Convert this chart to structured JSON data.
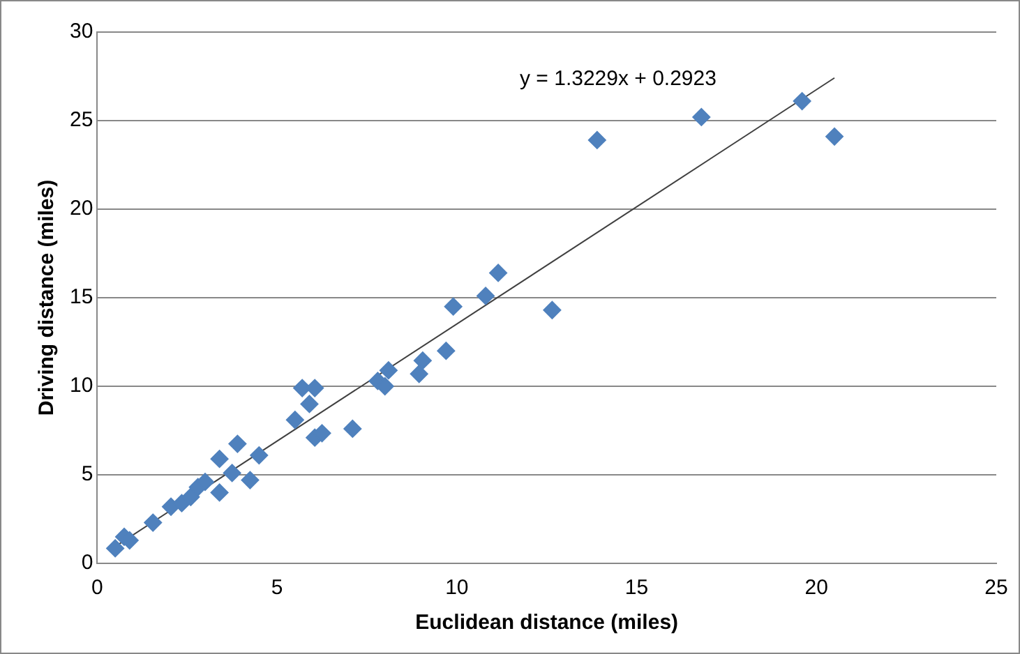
{
  "chart_data": {
    "type": "scatter",
    "xlabel": "Euclidean distance (miles)",
    "ylabel": "Driving distance (miles)",
    "xlim": [
      0,
      25
    ],
    "xticks": [
      0,
      5,
      10,
      15,
      20,
      25
    ],
    "ylim": [
      0,
      30
    ],
    "yticks": [
      0,
      5,
      10,
      15,
      20,
      25,
      30
    ],
    "grid": "y",
    "legend": false,
    "marker": "diamond",
    "annotations": [
      "y = 1.3229x + 0.2923"
    ],
    "series": [
      {
        "color": "#4f81bd",
        "x": [
          0.5,
          0.75,
          0.9,
          1.55,
          2.05,
          2.35,
          2.6,
          2.8,
          3.0,
          3.4,
          3.4,
          3.75,
          3.9,
          4.25,
          4.5,
          5.5,
          5.7,
          5.9,
          6.05,
          6.05,
          6.25,
          7.1,
          7.8,
          8.0,
          8.1,
          8.95,
          9.05,
          9.7,
          9.9,
          10.8,
          11.15,
          12.65,
          13.9,
          16.8,
          19.6,
          20.5
        ],
        "values": [
          0.85,
          1.5,
          1.3,
          2.3,
          3.2,
          3.4,
          3.75,
          4.3,
          4.6,
          4.0,
          5.9,
          5.1,
          6.75,
          4.7,
          6.1,
          8.1,
          9.9,
          9.0,
          9.9,
          7.1,
          7.35,
          7.6,
          10.3,
          10.0,
          10.9,
          10.7,
          11.45,
          12.0,
          14.5,
          15.1,
          16.4,
          14.3,
          23.9,
          25.2,
          26.1,
          24.1
        ]
      },
      {
        "type": "line",
        "color": "#404040",
        "marker": "none",
        "x": [
          0.5,
          20.5
        ],
        "values": [
          0.95,
          27.41
        ]
      }
    ]
  }
}
